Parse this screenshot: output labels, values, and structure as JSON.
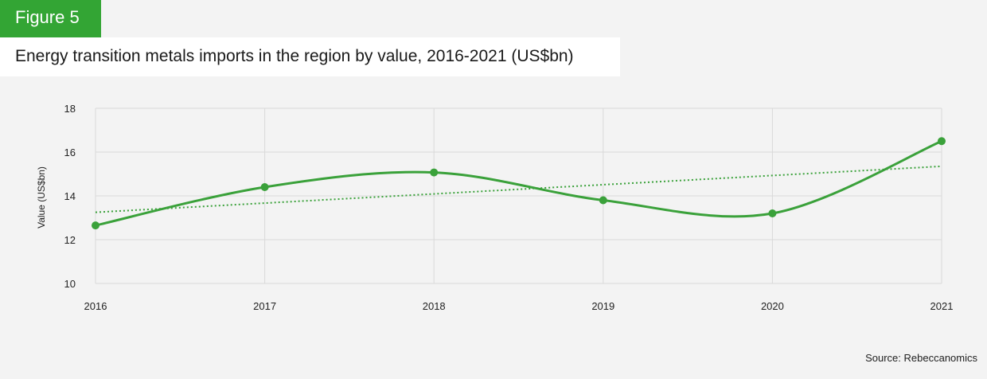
{
  "figure": {
    "label": "Figure 5",
    "title": "Energy transition metals imports in the region by value, 2016-2021 (US$bn)",
    "source": "Source: Rebeccanomics"
  },
  "colors": {
    "accent": "#33a534",
    "series_line": "#3aa13a",
    "trendline": "#3aa13a",
    "grid": "#d9d9d9",
    "background": "#f3f3f3",
    "title_bg": "#ffffff"
  },
  "chart_data": {
    "type": "line",
    "x": [
      "2016",
      "2017",
      "2018",
      "2019",
      "2020",
      "2021"
    ],
    "series": [
      {
        "values": [
          12.65,
          14.4,
          15.07,
          13.8,
          13.2,
          16.5
        ]
      }
    ],
    "trendline": {
      "style": "dotted",
      "start": 13.25,
      "end": 15.35
    },
    "ylabel": "Value (US$bn)",
    "xlabel": "",
    "ylim": [
      10,
      18
    ],
    "yticks": [
      "10",
      "12",
      "14",
      "16",
      "18"
    ],
    "grid": true,
    "smooth": true,
    "markers": true
  }
}
